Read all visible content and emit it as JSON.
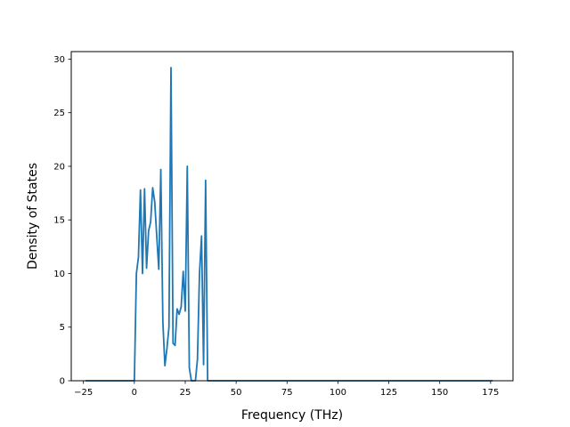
{
  "chart_data": {
    "type": "line",
    "title": "",
    "xlabel": "Frequency (THz)",
    "ylabel": "Density of States",
    "xlim": [
      -31,
      186
    ],
    "ylim": [
      0,
      30.7
    ],
    "xticks": [
      -25,
      0,
      25,
      50,
      75,
      100,
      125,
      150,
      175
    ],
    "yticks": [
      0,
      5,
      10,
      15,
      20,
      25,
      30
    ],
    "grid": false,
    "legend": "none",
    "series_color": "#1f77b4",
    "series": [
      {
        "x": [
          -24,
          -22,
          -20,
          -18,
          -16,
          -14,
          -12,
          -10,
          -8,
          -6,
          -4,
          -2,
          0,
          1,
          2,
          3,
          4,
          5,
          6,
          7,
          8,
          9,
          10,
          11,
          12,
          13,
          14,
          15,
          16,
          17,
          18,
          19,
          20,
          21,
          22,
          23,
          24,
          25,
          26,
          27,
          28,
          29,
          30,
          31,
          32,
          33,
          34,
          35,
          36,
          37,
          38,
          40,
          60,
          80,
          100,
          120,
          140,
          160,
          176
        ],
        "y": [
          0,
          0,
          0,
          0,
          0,
          0,
          0,
          0,
          0,
          0,
          0,
          0,
          0,
          10,
          11.5,
          17.8,
          10,
          17.9,
          10.5,
          14,
          14.8,
          18,
          16.7,
          13.5,
          10.4,
          19.7,
          5.5,
          1.4,
          3,
          5,
          29.2,
          3.5,
          3.3,
          6.7,
          6.2,
          6.9,
          10.2,
          6.5,
          20,
          1.2,
          0,
          0,
          0,
          2,
          10,
          13.5,
          1.5,
          18.7,
          0,
          0,
          0,
          0,
          0,
          0,
          0,
          0,
          0,
          0,
          0
        ]
      }
    ]
  }
}
